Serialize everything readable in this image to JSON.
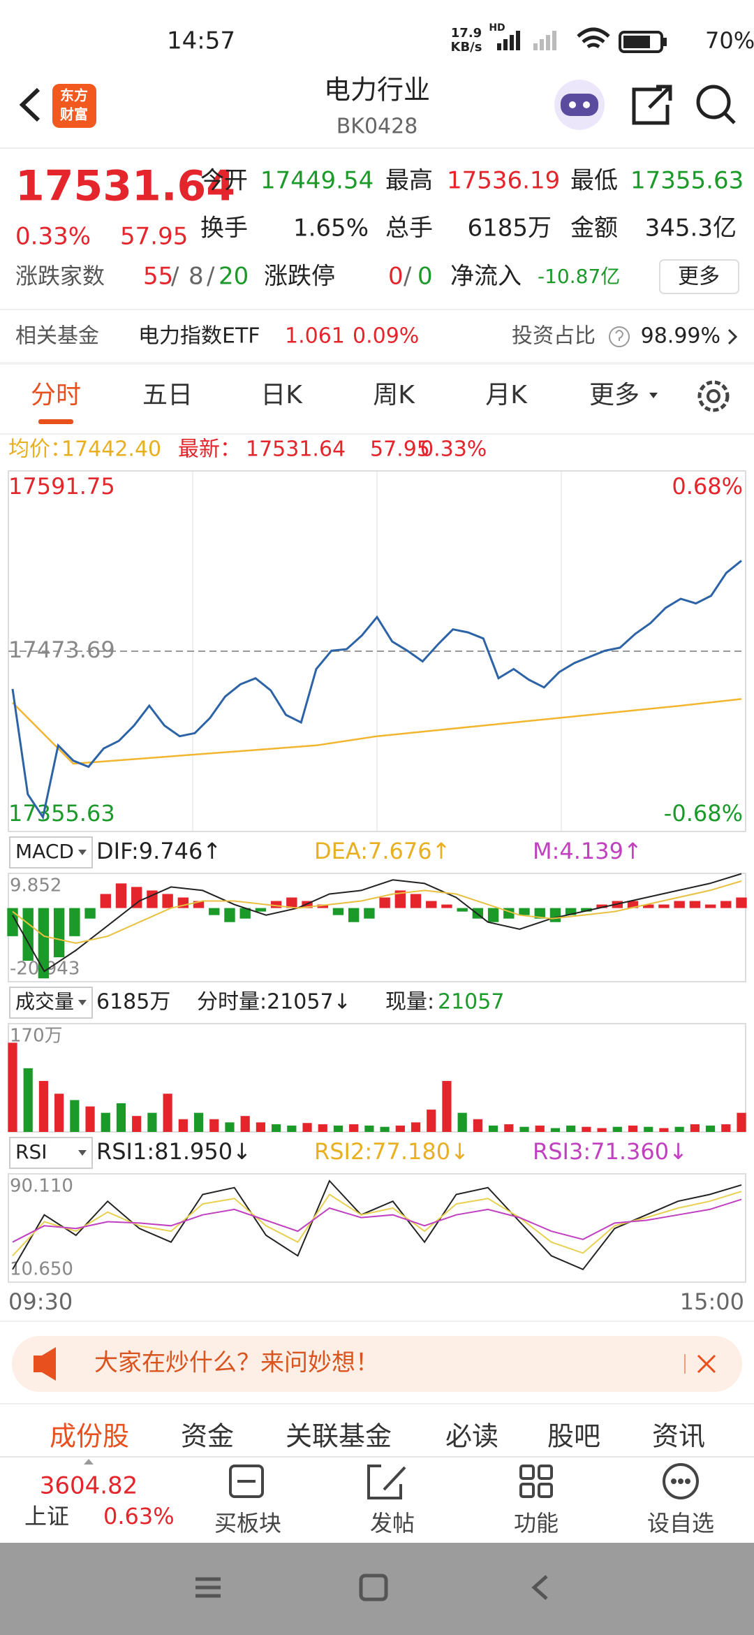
{
  "status": {
    "time": "14:57",
    "speed": "17.9",
    "speed_unit": "KB/s",
    "hd": "HD",
    "battery": "70%"
  },
  "header": {
    "logo": [
      "东方",
      "财富"
    ],
    "title": "电力行业",
    "code": "BK0428"
  },
  "quote": {
    "price": "17531.64",
    "change_pct": "0.33%",
    "change": "57.95",
    "fields": [
      {
        "label": "今开",
        "value": "17449.54"
      },
      {
        "label": "最高",
        "value": "17536.19"
      },
      {
        "label": "最低",
        "value": "17355.63"
      },
      {
        "label": "换手",
        "value": "1.65%"
      },
      {
        "label": "总手",
        "value": "6185万"
      },
      {
        "label": "金额",
        "value": "345.3亿"
      }
    ],
    "breadth_label": "涨跌家数",
    "breadth": [
      "55",
      "8",
      "20"
    ],
    "sep": "/",
    "limit_label": "涨跌停",
    "limit": [
      "0",
      "0"
    ],
    "flow_label": "净流入",
    "flow": "-10.87亿",
    "more": "更多"
  },
  "fund": {
    "label": "相关基金",
    "name": "电力指数ETF",
    "price": "1.061",
    "pct": "0.09%",
    "ratio_label": "投资占比",
    "ratio": "98.99%"
  },
  "tabs": [
    "分时",
    "五日",
    "日K",
    "周K",
    "月K",
    "更多"
  ],
  "info": {
    "avg_label": "均价：",
    "avg": "17442.40",
    "last_label": "最新：",
    "last": "17531.64",
    "change": "57.95",
    "pct": "0.33%"
  },
  "intraday": {
    "ylim": [
      17355.63,
      17591.75
    ],
    "yticks": [
      17591.75,
      17473.69,
      17355.63
    ],
    "y2lim": [
      -0.68,
      0.68
    ],
    "y2ticks": [
      {
        "value": 0.68,
        "label": "0.68%"
      },
      {
        "value": -0.68,
        "label": "-0.68%"
      }
    ],
    "price": {
      "color": "#2c63a6",
      "values": [
        17449,
        17380,
        17365,
        17412,
        17402,
        17398,
        17410,
        17415,
        17425,
        17438,
        17425,
        17418,
        17420,
        17430,
        17444,
        17452,
        17456,
        17448,
        17432,
        17427,
        17462,
        17474,
        17475,
        17484,
        17496,
        17480,
        17474,
        17467,
        17478,
        17488,
        17486,
        17482,
        17456,
        17462,
        17455,
        17450,
        17460,
        17466,
        17470,
        17474,
        17476,
        17485,
        17492,
        17502,
        17508,
        17505,
        17510,
        17525,
        17533
      ]
    },
    "avg": {
      "color": "#f2b530",
      "values": [
        17440,
        17400,
        17403,
        17406,
        17409,
        17412,
        17418,
        17422,
        17426,
        17430,
        17434,
        17438,
        17442.4
      ]
    }
  },
  "macd": {
    "selector": "MACD",
    "dif_label": "DIF:9.746↑",
    "dea_label": "DEA:7.676↑",
    "m_label": "M:4.139↑",
    "ylim": [
      -20.943,
      9.852
    ],
    "yticks": [
      9.852,
      -20.943
    ],
    "hist": {
      "up_color": "#e4252b",
      "down_color": "#1b9a2a",
      "values": [
        -8,
        -15,
        -20,
        -14,
        -8,
        -3,
        4,
        7,
        6,
        5,
        4,
        3,
        2,
        -2,
        -4,
        -3,
        -1,
        2,
        3,
        2,
        1,
        -2,
        -4,
        -3,
        3,
        5,
        4,
        2,
        1,
        -1,
        -3,
        -4,
        -3,
        -2,
        -3,
        -4,
        -2,
        -1,
        1,
        2,
        2,
        1,
        1,
        2,
        2,
        1,
        2,
        3
      ]
    },
    "dif": {
      "color": "#222222",
      "values": [
        -2,
        -18,
        -12,
        -5,
        2,
        6,
        5,
        1,
        -2,
        0,
        4,
        5,
        8,
        7,
        3,
        -4,
        -6,
        -3,
        -1,
        1,
        3,
        5,
        7,
        9.746
      ]
    },
    "dea": {
      "color": "#e8c040",
      "values": [
        -1,
        -8,
        -10,
        -8,
        -4,
        0,
        2,
        2,
        1,
        0,
        1,
        2,
        4,
        5,
        4,
        1,
        -2,
        -3,
        -2,
        -1,
        1,
        3,
        5,
        7.676
      ]
    }
  },
  "volume": {
    "selector": "成交量",
    "total": "6185万",
    "tick_label": "分时量:21057↓",
    "now_label": "现量:",
    "now": "21057",
    "ylim": [
      0,
      170
    ],
    "yticks": [
      {
        "value": 170,
        "label": "170万"
      }
    ],
    "values": [
      140,
      100,
      80,
      60,
      50,
      40,
      30,
      45,
      25,
      30,
      60,
      20,
      30,
      20,
      15,
      25,
      15,
      12,
      10,
      14,
      12,
      10,
      12,
      10,
      8,
      10,
      15,
      35,
      80,
      30,
      20,
      10,
      12,
      8,
      10,
      6,
      10,
      8,
      6,
      8,
      10,
      8,
      6,
      8,
      12,
      10,
      12,
      30
    ],
    "colors": [
      "#e4252b",
      "#1b9a2a",
      "#e4252b",
      "#e4252b",
      "#1b9a2a",
      "#e4252b",
      "#1b9a2a",
      "#1b9a2a",
      "#e4252b",
      "#1b9a2a",
      "#e4252b",
      "#e4252b",
      "#1b9a2a",
      "#e4252b",
      "#1b9a2a",
      "#e4252b",
      "#e4252b",
      "#1b9a2a",
      "#1b9a2a",
      "#e4252b",
      "#e4252b",
      "#1b9a2a",
      "#e4252b",
      "#1b9a2a",
      "#1b9a2a",
      "#e4252b",
      "#e4252b",
      "#e4252b",
      "#e4252b",
      "#1b9a2a",
      "#e4252b",
      "#1b9a2a",
      "#e4252b",
      "#1b9a2a",
      "#e4252b",
      "#1b9a2a",
      "#1b9a2a",
      "#e4252b",
      "#e4252b",
      "#1b9a2a",
      "#e4252b",
      "#1b9a2a",
      "#e4252b",
      "#1b9a2a",
      "#e4252b",
      "#1b9a2a",
      "#e4252b",
      "#e4252b"
    ]
  },
  "rsi": {
    "selector": "RSI",
    "labels": [
      "RSI1:81.950↓",
      "RSI2:77.180↓",
      "RSI3:71.360↓"
    ],
    "ylim": [
      10.65,
      90.11
    ],
    "yticks": [
      {
        "value": 90.11,
        "label": "90.110"
      },
      {
        "value": 10.65,
        "label": "10.650"
      }
    ],
    "series": [
      {
        "color": "#222222",
        "values": [
          20,
          60,
          45,
          70,
          50,
          40,
          75,
          80,
          45,
          30,
          85,
          60,
          70,
          40,
          75,
          80,
          55,
          30,
          20,
          50,
          60,
          70,
          75,
          81.95
        ]
      },
      {
        "color": "#e8d050",
        "values": [
          30,
          55,
          48,
          62,
          52,
          48,
          68,
          72,
          52,
          40,
          75,
          60,
          65,
          48,
          68,
          72,
          58,
          40,
          32,
          52,
          58,
          65,
          70,
          77.18
        ]
      },
      {
        "color": "#c040c0",
        "values": [
          40,
          52,
          50,
          55,
          54,
          52,
          60,
          64,
          56,
          48,
          65,
          58,
          60,
          52,
          60,
          64,
          58,
          48,
          42,
          54,
          56,
          60,
          64,
          71.36
        ]
      }
    ]
  },
  "times": [
    "09:30",
    "15:00"
  ],
  "banner": "大家在炒什么？来问妙想！",
  "bottom_tabs": [
    "成份股",
    "资金",
    "关联基金",
    "必读",
    "股吧",
    "资讯"
  ],
  "bottom_bar": {
    "index_value": "3604.82",
    "index_name": "上证",
    "index_pct": "0.63%",
    "actions": [
      "买板块",
      "发帖",
      "功能",
      "设自选"
    ]
  }
}
